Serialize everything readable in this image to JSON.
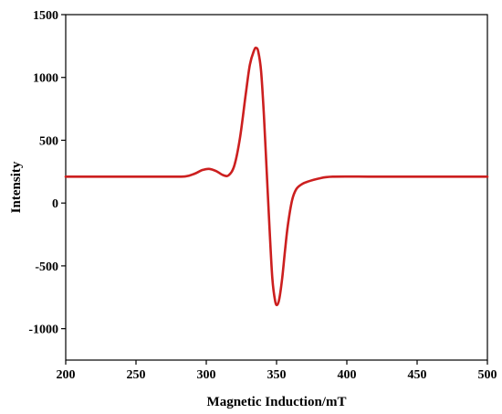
{
  "chart_data": {
    "type": "line",
    "title": "",
    "xlabel": "Magnetic Induction/mT",
    "ylabel": "Intensity",
    "xlim": [
      200,
      500
    ],
    "ylim": [
      -1250,
      1500
    ],
    "xticks": [
      200,
      250,
      300,
      350,
      400,
      450,
      500
    ],
    "yticks": [
      1500,
      1000,
      500,
      0,
      -500,
      -1000
    ],
    "ytick_labels": [
      "1500",
      "1000",
      "500",
      "0",
      "-500",
      "-1000"
    ],
    "grid": false,
    "legend": "none",
    "series": [
      {
        "color": "#cc1f1f",
        "x": [
          200,
          240,
          270,
          285,
          292,
          297,
          302,
          307,
          312,
          316,
          320,
          324,
          328,
          331,
          334,
          335.5,
          337,
          339,
          341,
          343,
          345,
          347,
          349,
          350.5,
          352,
          354,
          356,
          358,
          361,
          364,
          368,
          372,
          380,
          390,
          420,
          460,
          500
        ],
        "y": [
          210,
          210,
          210,
          212,
          235,
          262,
          272,
          255,
          222,
          222,
          300,
          520,
          860,
          1100,
          1215,
          1235,
          1205,
          1050,
          700,
          250,
          -200,
          -600,
          -780,
          -810,
          -760,
          -600,
          -380,
          -180,
          20,
          110,
          150,
          170,
          195,
          210,
          210,
          210,
          210
        ]
      }
    ]
  }
}
